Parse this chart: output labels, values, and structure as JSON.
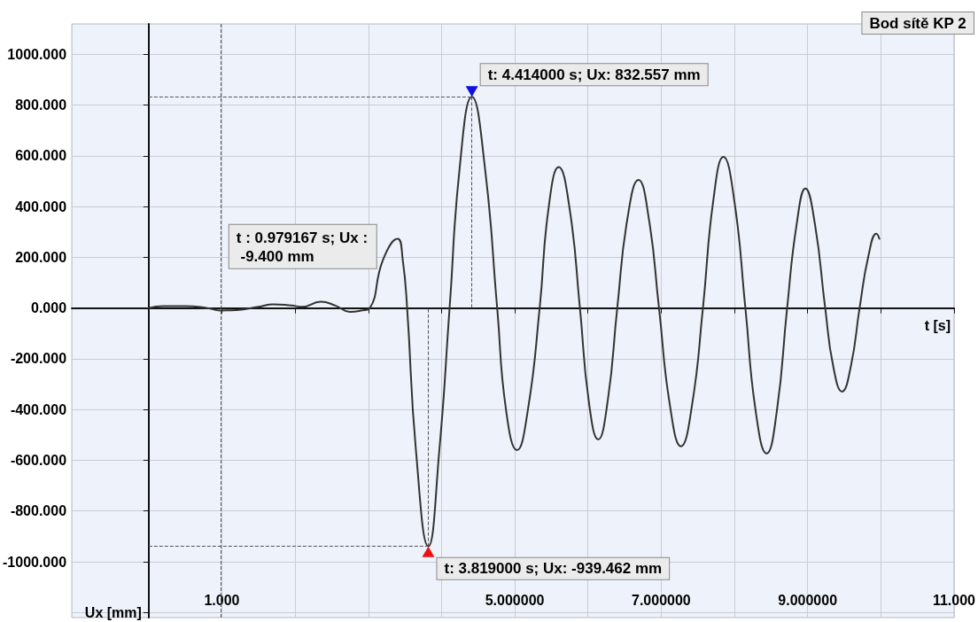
{
  "chart_data": {
    "type": "line",
    "title": "Bod sítě KP 2",
    "xlabel": "t [s]",
    "ylabel": "Ux [mm]",
    "x": [
      0,
      0.2,
      0.5,
      0.8,
      0.979167,
      1.2,
      1.5,
      1.7,
      1.95,
      2.1,
      2.35,
      2.55,
      2.75,
      2.9,
      3.02,
      3.2,
      3.4,
      3.47,
      3.53,
      3.65,
      3.819,
      3.97,
      4.11,
      4.25,
      4.414,
      4.59,
      4.76,
      4.88,
      5.03,
      5.18,
      5.34,
      5.46,
      5.6,
      5.75,
      5.89,
      6.01,
      6.14,
      6.27,
      6.4,
      6.54,
      6.69,
      6.83,
      6.97,
      7.12,
      7.27,
      7.42,
      7.57,
      7.71,
      7.85,
      8.0,
      8.15,
      8.29,
      8.44,
      8.58,
      8.72,
      8.85,
      8.97,
      9.1,
      9.24,
      9.35,
      9.47,
      9.59,
      9.71,
      9.83,
      9.94,
      9.98
    ],
    "series": [
      {
        "color": "#333333",
        "values": [
          0,
          8,
          8,
          0,
          -9.4,
          -8,
          5,
          15,
          10,
          5,
          25,
          10,
          -15,
          -10,
          0,
          190,
          273,
          190,
          0,
          -560,
          -939.462,
          -560,
          0,
          560,
          832.557,
          560,
          0,
          -400,
          -560,
          -400,
          0,
          390,
          556,
          390,
          0,
          -365,
          -518,
          -365,
          0,
          355,
          505,
          355,
          0,
          -385,
          -545,
          -385,
          0,
          420,
          596,
          420,
          0,
          -405,
          -573,
          -405,
          0,
          330,
          471,
          330,
          0,
          -230,
          -329,
          -230,
          0,
          205,
          293,
          273
        ]
      }
    ],
    "xlim": [
      -1.05,
      11
    ],
    "ylim": [
      -1220,
      1120
    ],
    "xticks": [
      {
        "value": 1,
        "label": "1.000"
      },
      {
        "value": 2,
        "label": null
      },
      {
        "value": 3,
        "label": null
      },
      {
        "value": 4,
        "label": null
      },
      {
        "value": 5,
        "label": "5.000000"
      },
      {
        "value": 6,
        "label": null
      },
      {
        "value": 7,
        "label": "7.000000"
      },
      {
        "value": 8,
        "label": null
      },
      {
        "value": 9,
        "label": "9.000000"
      },
      {
        "value": 10,
        "label": null
      },
      {
        "value": 11,
        "label": "11.000"
      }
    ],
    "yticks": [
      {
        "value": -1200,
        "label": null
      },
      {
        "value": -1000,
        "label": "-1000.000"
      },
      {
        "value": -800,
        "label": "-800.000"
      },
      {
        "value": -600,
        "label": "-600.000"
      },
      {
        "value": -400,
        "label": "-400.000"
      },
      {
        "value": -200,
        "label": "-200.000"
      },
      {
        "value": 0,
        "label": "0.000"
      },
      {
        "value": 200,
        "label": "200.000"
      },
      {
        "value": 400,
        "label": "400.000"
      },
      {
        "value": 600,
        "label": "600.000"
      },
      {
        "value": 800,
        "label": "800.000"
      },
      {
        "value": 1000,
        "label": "1000.000"
      }
    ],
    "grid": true,
    "marker": "none",
    "line_style": "solid",
    "ref_lines": [
      {
        "axis": "x",
        "value": 0.979167,
        "label": "t : 0.979167 s; Ux : -9.400 mm",
        "line_style": "dashed",
        "color": "#555555"
      }
    ],
    "annotations": [
      {
        "text": "t: 4.414000 s; Ux: 832.557 mm",
        "x": 4.414,
        "y": 832.557
      },
      {
        "text": "t: 3.819000 s; Ux: -939.462 mm",
        "x": 3.819,
        "y": -939.462
      }
    ]
  }
}
